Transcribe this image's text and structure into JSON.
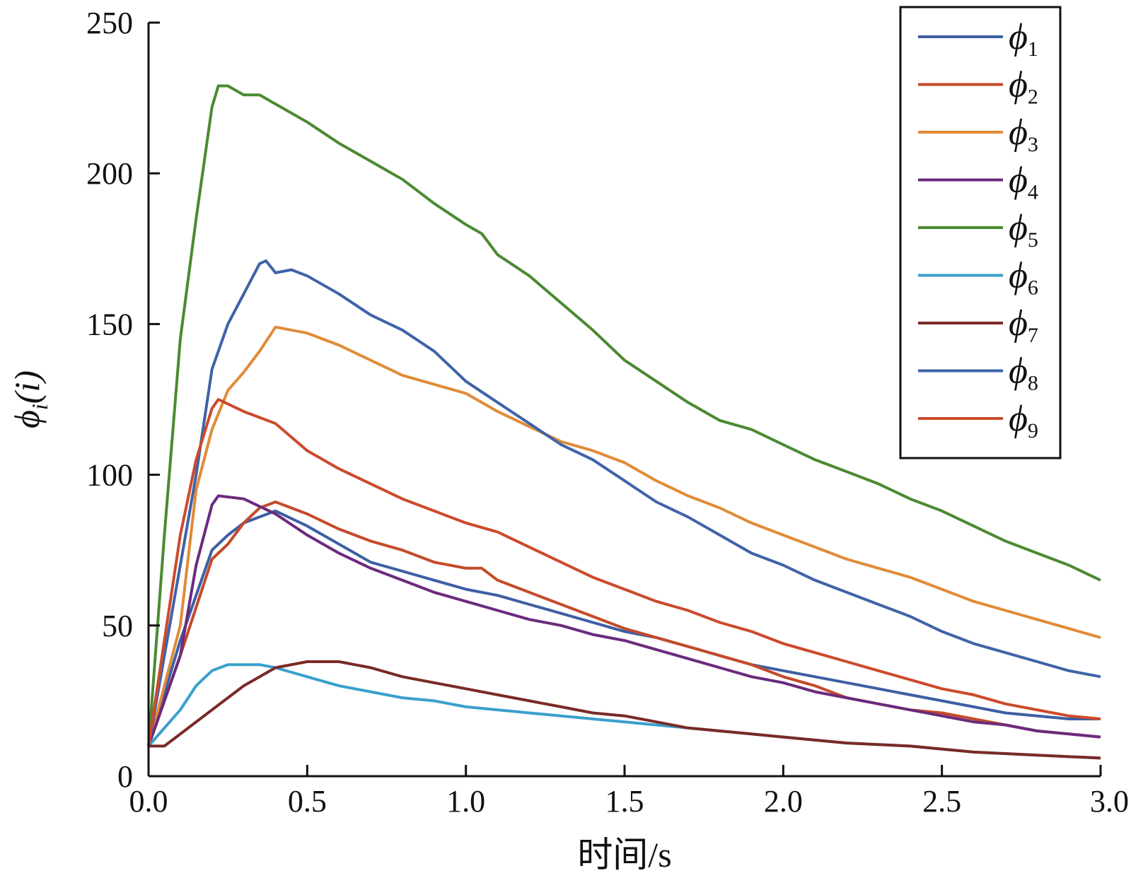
{
  "chart_data": {
    "type": "line",
    "xlabel": "时间/s",
    "ylabel": "ϕi(i)",
    "ylabel_parts": {
      "symbol": "ϕ",
      "sub": "i",
      "arg": "(i)"
    },
    "xlim": [
      0,
      3
    ],
    "ylim": [
      0,
      250
    ],
    "x_ticks": [
      0,
      0.5,
      1,
      1.5,
      2,
      2.5,
      3
    ],
    "x_tick_labels": [
      "0.0",
      "0.5",
      "1.0",
      "1.5",
      "2.0",
      "2.5",
      "3.0"
    ],
    "y_ticks": [
      0,
      50,
      100,
      150,
      200,
      250
    ],
    "y_tick_labels": [
      "0",
      "50",
      "100",
      "150",
      "200",
      "250"
    ],
    "grid": false,
    "legend_position": "top-right",
    "series": [
      {
        "name": "ϕ1",
        "symbol": "ϕ",
        "sub": "1",
        "color": "#3d5fa3",
        "points": [
          [
            0,
            10
          ],
          [
            0.1,
            45
          ],
          [
            0.2,
            75
          ],
          [
            0.25,
            80
          ],
          [
            0.3,
            84
          ],
          [
            0.35,
            86
          ],
          [
            0.4,
            88
          ],
          [
            0.5,
            83
          ],
          [
            0.6,
            77
          ],
          [
            0.7,
            71
          ],
          [
            0.8,
            68
          ],
          [
            0.9,
            65
          ],
          [
            1.0,
            62
          ],
          [
            1.1,
            60
          ],
          [
            1.2,
            57
          ],
          [
            1.3,
            54
          ],
          [
            1.4,
            51
          ],
          [
            1.5,
            48
          ],
          [
            1.6,
            46
          ],
          [
            1.7,
            43
          ],
          [
            1.8,
            40
          ],
          [
            1.9,
            37
          ],
          [
            2.0,
            35
          ],
          [
            2.1,
            33
          ],
          [
            2.2,
            31
          ],
          [
            2.3,
            29
          ],
          [
            2.4,
            27
          ],
          [
            2.5,
            25
          ],
          [
            2.6,
            23
          ],
          [
            2.7,
            21
          ],
          [
            2.8,
            20
          ],
          [
            2.9,
            19
          ],
          [
            3.0,
            19
          ]
        ]
      },
      {
        "name": "ϕ2",
        "symbol": "ϕ",
        "sub": "2",
        "color": "#c44a2a",
        "points": [
          [
            0,
            10
          ],
          [
            0.1,
            40
          ],
          [
            0.2,
            72
          ],
          [
            0.25,
            77
          ],
          [
            0.3,
            84
          ],
          [
            0.35,
            89
          ],
          [
            0.4,
            91
          ],
          [
            0.5,
            87
          ],
          [
            0.6,
            82
          ],
          [
            0.7,
            78
          ],
          [
            0.8,
            75
          ],
          [
            0.9,
            71
          ],
          [
            1.0,
            69
          ],
          [
            1.05,
            69
          ],
          [
            1.1,
            65
          ],
          [
            1.2,
            61
          ],
          [
            1.3,
            57
          ],
          [
            1.4,
            53
          ],
          [
            1.5,
            49
          ],
          [
            1.6,
            46
          ],
          [
            1.7,
            43
          ],
          [
            1.8,
            40
          ],
          [
            1.9,
            37
          ],
          [
            2.0,
            33
          ],
          [
            2.1,
            30
          ],
          [
            2.2,
            26
          ],
          [
            2.3,
            24
          ],
          [
            2.4,
            22
          ],
          [
            2.5,
            21
          ],
          [
            2.6,
            19
          ],
          [
            2.7,
            17
          ],
          [
            2.8,
            15
          ],
          [
            2.9,
            14
          ],
          [
            3.0,
            13
          ]
        ]
      },
      {
        "name": "ϕ3",
        "symbol": "ϕ",
        "sub": "3",
        "color": "#e08b38",
        "points": [
          [
            0,
            10
          ],
          [
            0.1,
            50
          ],
          [
            0.15,
            95
          ],
          [
            0.2,
            115
          ],
          [
            0.25,
            128
          ],
          [
            0.3,
            134
          ],
          [
            0.35,
            141
          ],
          [
            0.4,
            149
          ],
          [
            0.5,
            147
          ],
          [
            0.6,
            143
          ],
          [
            0.7,
            138
          ],
          [
            0.8,
            133
          ],
          [
            0.9,
            130
          ],
          [
            1.0,
            127
          ],
          [
            1.1,
            121
          ],
          [
            1.2,
            116
          ],
          [
            1.3,
            111
          ],
          [
            1.4,
            108
          ],
          [
            1.5,
            104
          ],
          [
            1.6,
            98
          ],
          [
            1.7,
            93
          ],
          [
            1.8,
            89
          ],
          [
            1.9,
            84
          ],
          [
            2.0,
            80
          ],
          [
            2.1,
            76
          ],
          [
            2.2,
            72
          ],
          [
            2.3,
            69
          ],
          [
            2.4,
            66
          ],
          [
            2.5,
            62
          ],
          [
            2.6,
            58
          ],
          [
            2.7,
            55
          ],
          [
            2.8,
            52
          ],
          [
            2.9,
            49
          ],
          [
            3.0,
            46
          ]
        ]
      },
      {
        "name": "ϕ4",
        "symbol": "ϕ",
        "sub": "4",
        "color": "#6b2a7d",
        "points": [
          [
            0,
            10
          ],
          [
            0.1,
            40
          ],
          [
            0.15,
            70
          ],
          [
            0.2,
            90
          ],
          [
            0.22,
            93
          ],
          [
            0.3,
            92
          ],
          [
            0.4,
            87
          ],
          [
            0.5,
            80
          ],
          [
            0.6,
            74
          ],
          [
            0.7,
            69
          ],
          [
            0.8,
            65
          ],
          [
            0.9,
            61
          ],
          [
            1.0,
            58
          ],
          [
            1.1,
            55
          ],
          [
            1.2,
            52
          ],
          [
            1.3,
            50
          ],
          [
            1.4,
            47
          ],
          [
            1.5,
            45
          ],
          [
            1.6,
            42
          ],
          [
            1.7,
            39
          ],
          [
            1.8,
            36
          ],
          [
            1.9,
            33
          ],
          [
            2.0,
            31
          ],
          [
            2.1,
            28
          ],
          [
            2.2,
            26
          ],
          [
            2.3,
            24
          ],
          [
            2.4,
            22
          ],
          [
            2.5,
            20
          ],
          [
            2.6,
            18
          ],
          [
            2.7,
            17
          ],
          [
            2.8,
            15
          ],
          [
            2.9,
            14
          ],
          [
            3.0,
            13
          ]
        ]
      },
      {
        "name": "ϕ5",
        "symbol": "ϕ",
        "sub": "5",
        "color": "#4b8a32",
        "points": [
          [
            0,
            10
          ],
          [
            0.05,
            80
          ],
          [
            0.1,
            145
          ],
          [
            0.15,
            185
          ],
          [
            0.2,
            222
          ],
          [
            0.22,
            229
          ],
          [
            0.25,
            229
          ],
          [
            0.3,
            226
          ],
          [
            0.35,
            226
          ],
          [
            0.4,
            223
          ],
          [
            0.5,
            217
          ],
          [
            0.6,
            210
          ],
          [
            0.7,
            204
          ],
          [
            0.8,
            198
          ],
          [
            0.9,
            190
          ],
          [
            1.0,
            183
          ],
          [
            1.05,
            180
          ],
          [
            1.1,
            173
          ],
          [
            1.2,
            166
          ],
          [
            1.3,
            157
          ],
          [
            1.4,
            148
          ],
          [
            1.5,
            138
          ],
          [
            1.6,
            131
          ],
          [
            1.7,
            124
          ],
          [
            1.8,
            118
          ],
          [
            1.9,
            115
          ],
          [
            2.0,
            110
          ],
          [
            2.1,
            105
          ],
          [
            2.2,
            101
          ],
          [
            2.3,
            97
          ],
          [
            2.4,
            92
          ],
          [
            2.5,
            88
          ],
          [
            2.6,
            83
          ],
          [
            2.7,
            78
          ],
          [
            2.8,
            74
          ],
          [
            2.9,
            70
          ],
          [
            3.0,
            65
          ]
        ]
      },
      {
        "name": "ϕ6",
        "symbol": "ϕ",
        "sub": "6",
        "color": "#3aa0cc",
        "points": [
          [
            0,
            10
          ],
          [
            0.1,
            22
          ],
          [
            0.15,
            30
          ],
          [
            0.2,
            35
          ],
          [
            0.25,
            37
          ],
          [
            0.35,
            37
          ],
          [
            0.4,
            36
          ],
          [
            0.5,
            33
          ],
          [
            0.6,
            30
          ],
          [
            0.7,
            28
          ],
          [
            0.8,
            26
          ],
          [
            0.9,
            25
          ],
          [
            1.0,
            23
          ],
          [
            1.2,
            21
          ],
          [
            1.4,
            19
          ],
          [
            1.6,
            17
          ],
          [
            1.8,
            15
          ],
          [
            2.0,
            13
          ],
          [
            2.2,
            11
          ],
          [
            2.4,
            10
          ],
          [
            2.6,
            8
          ],
          [
            2.8,
            7
          ],
          [
            3.0,
            6
          ]
        ]
      },
      {
        "name": "ϕ7",
        "symbol": "ϕ",
        "sub": "7",
        "color": "#7a2a26",
        "points": [
          [
            0,
            10
          ],
          [
            0.05,
            10
          ],
          [
            0.1,
            14
          ],
          [
            0.2,
            22
          ],
          [
            0.3,
            30
          ],
          [
            0.4,
            36
          ],
          [
            0.5,
            38
          ],
          [
            0.6,
            38
          ],
          [
            0.7,
            36
          ],
          [
            0.8,
            33
          ],
          [
            0.9,
            31
          ],
          [
            1.0,
            29
          ],
          [
            1.1,
            27
          ],
          [
            1.2,
            25
          ],
          [
            1.3,
            23
          ],
          [
            1.4,
            21
          ],
          [
            1.5,
            20
          ],
          [
            1.6,
            18
          ],
          [
            1.7,
            16
          ],
          [
            1.8,
            15
          ],
          [
            1.9,
            14
          ],
          [
            2.0,
            13
          ],
          [
            2.2,
            11
          ],
          [
            2.4,
            10
          ],
          [
            2.6,
            8
          ],
          [
            2.8,
            7
          ],
          [
            3.0,
            6
          ]
        ]
      },
      {
        "name": "ϕ8",
        "symbol": "ϕ",
        "sub": "8",
        "color": "#3f63a8",
        "points": [
          [
            0,
            10
          ],
          [
            0.1,
            70
          ],
          [
            0.15,
            100
          ],
          [
            0.2,
            135
          ],
          [
            0.25,
            150
          ],
          [
            0.3,
            160
          ],
          [
            0.35,
            170
          ],
          [
            0.37,
            171
          ],
          [
            0.4,
            167
          ],
          [
            0.45,
            168
          ],
          [
            0.5,
            166
          ],
          [
            0.6,
            160
          ],
          [
            0.7,
            153
          ],
          [
            0.8,
            148
          ],
          [
            0.9,
            141
          ],
          [
            1.0,
            131
          ],
          [
            1.1,
            124
          ],
          [
            1.2,
            117
          ],
          [
            1.3,
            110
          ],
          [
            1.4,
            105
          ],
          [
            1.5,
            98
          ],
          [
            1.6,
            91
          ],
          [
            1.7,
            86
          ],
          [
            1.8,
            80
          ],
          [
            1.9,
            74
          ],
          [
            2.0,
            70
          ],
          [
            2.1,
            65
          ],
          [
            2.2,
            61
          ],
          [
            2.3,
            57
          ],
          [
            2.4,
            53
          ],
          [
            2.5,
            48
          ],
          [
            2.6,
            44
          ],
          [
            2.7,
            41
          ],
          [
            2.8,
            38
          ],
          [
            2.9,
            35
          ],
          [
            3.0,
            33
          ]
        ]
      },
      {
        "name": "ϕ9",
        "symbol": "ϕ",
        "sub": "9",
        "color": "#cc4a2c",
        "points": [
          [
            0,
            10
          ],
          [
            0.05,
            45
          ],
          [
            0.1,
            80
          ],
          [
            0.15,
            105
          ],
          [
            0.2,
            122
          ],
          [
            0.22,
            125
          ],
          [
            0.3,
            121
          ],
          [
            0.4,
            117
          ],
          [
            0.5,
            108
          ],
          [
            0.6,
            102
          ],
          [
            0.7,
            97
          ],
          [
            0.8,
            92
          ],
          [
            0.9,
            88
          ],
          [
            1.0,
            84
          ],
          [
            1.1,
            81
          ],
          [
            1.2,
            76
          ],
          [
            1.3,
            71
          ],
          [
            1.4,
            66
          ],
          [
            1.5,
            62
          ],
          [
            1.6,
            58
          ],
          [
            1.7,
            55
          ],
          [
            1.8,
            51
          ],
          [
            1.9,
            48
          ],
          [
            2.0,
            44
          ],
          [
            2.1,
            41
          ],
          [
            2.2,
            38
          ],
          [
            2.3,
            35
          ],
          [
            2.4,
            32
          ],
          [
            2.5,
            29
          ],
          [
            2.6,
            27
          ],
          [
            2.7,
            24
          ],
          [
            2.8,
            22
          ],
          [
            2.9,
            20
          ],
          [
            3.0,
            19
          ]
        ]
      }
    ]
  }
}
